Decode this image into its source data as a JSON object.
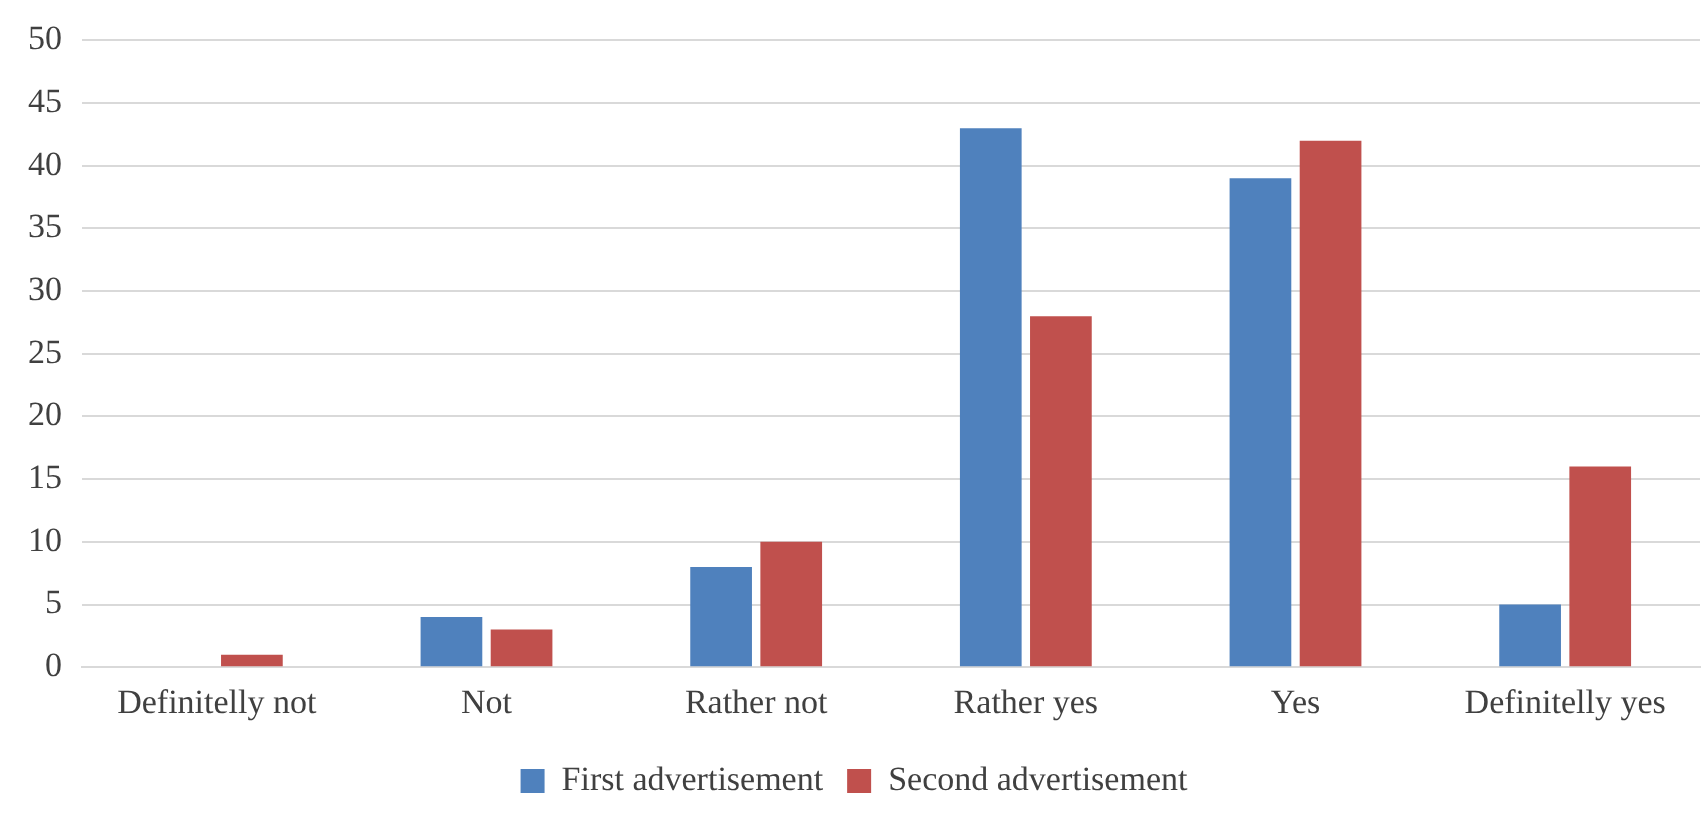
{
  "chart_data": {
    "type": "bar",
    "categories": [
      "Definitelly not",
      "Not",
      "Rather not",
      "Rather yes",
      "Yes",
      "Definitelly yes"
    ],
    "series": [
      {
        "name": "First advertisement",
        "color": "#4f81bd",
        "values": [
          0,
          4,
          8,
          43,
          39,
          5
        ]
      },
      {
        "name": "Second advertisement",
        "color": "#c0504d",
        "values": [
          1,
          3,
          10,
          28,
          42,
          16
        ]
      }
    ],
    "ylim": [
      0,
      50
    ],
    "yticks": [
      0,
      5,
      10,
      15,
      20,
      25,
      30,
      35,
      40,
      45,
      50
    ],
    "grid": "y",
    "legend": "bottom"
  }
}
